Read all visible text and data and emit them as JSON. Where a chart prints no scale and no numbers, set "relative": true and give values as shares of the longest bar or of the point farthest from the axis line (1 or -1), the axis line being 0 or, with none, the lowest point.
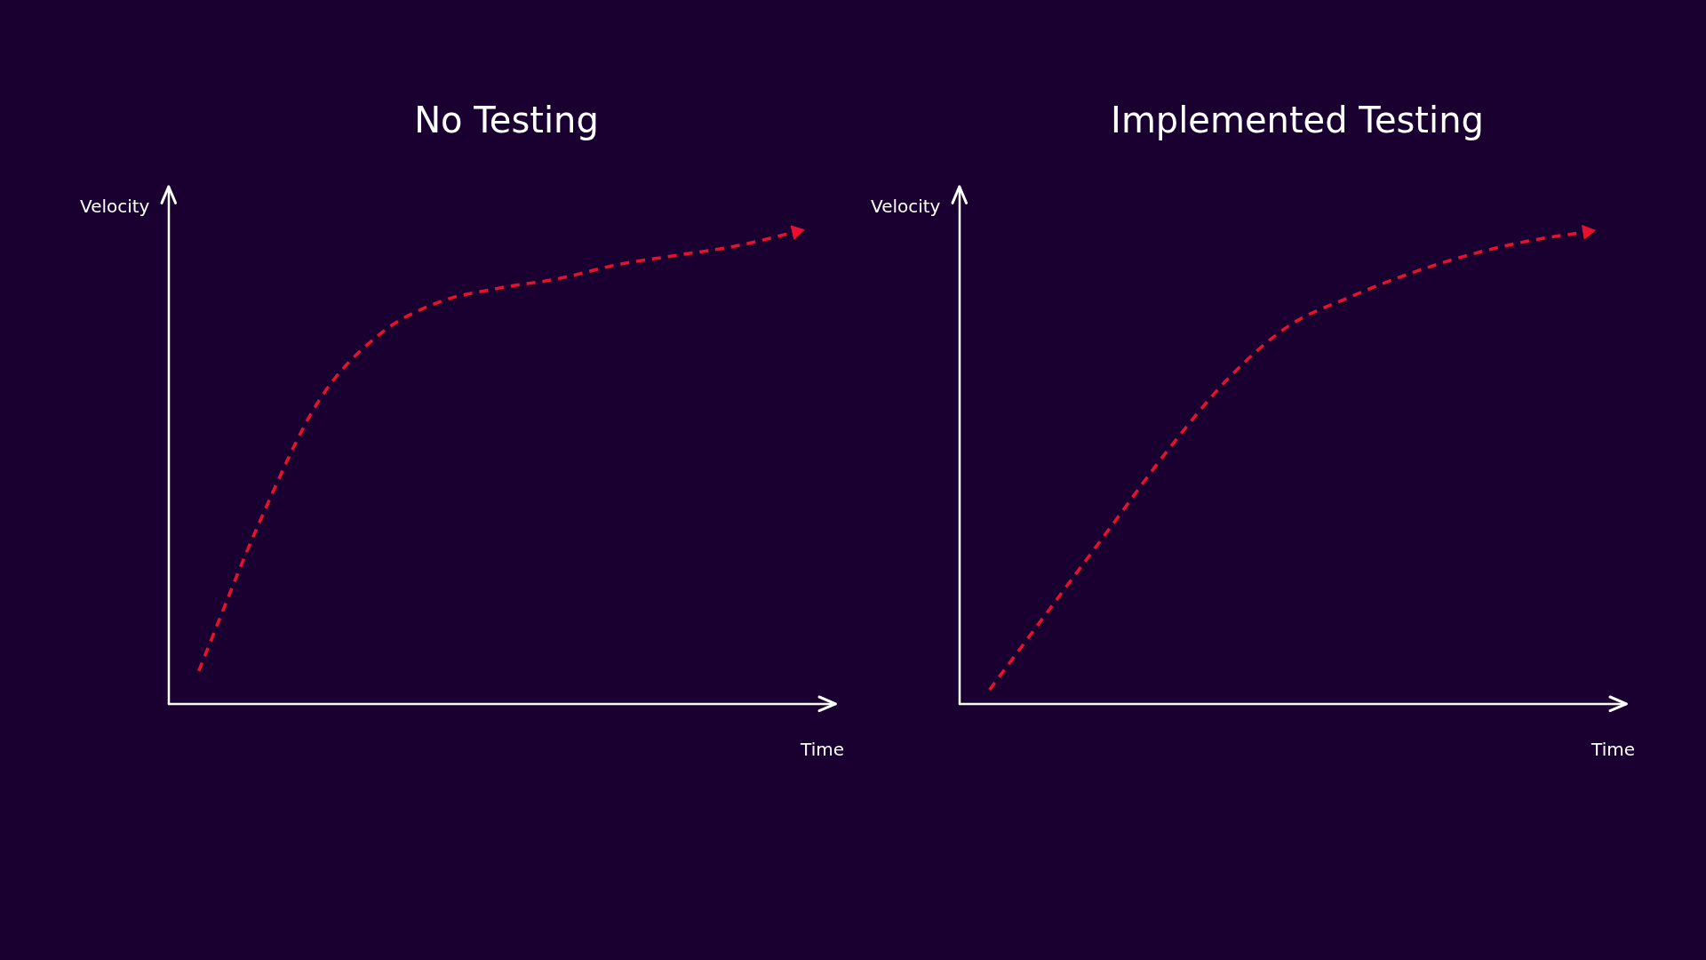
{
  "chart_data": [
    {
      "type": "line",
      "title": "No Testing",
      "xlabel": "Time",
      "ylabel": "Velocity",
      "relative": true,
      "line_style": "dashed",
      "categories": [
        null,
        null,
        null,
        null,
        null,
        null,
        null,
        null,
        null,
        null,
        null
      ],
      "series": [
        {
          "color": "#e8112d",
          "values": [
            0.07,
            0.38,
            0.64,
            0.78,
            0.85,
            0.88,
            0.9,
            0.93,
            0.95,
            0.97,
            1
          ]
        }
      ]
    },
    {
      "type": "line",
      "title": "Implemented Testing",
      "xlabel": "Time",
      "ylabel": "Velocity",
      "relative": true,
      "line_style": "dashed",
      "categories": [
        null,
        null,
        null,
        null,
        null,
        null,
        null,
        null,
        null,
        null,
        null
      ],
      "series": [
        {
          "color": "#e8112d",
          "values": [
            0.03,
            0.2,
            0.37,
            0.54,
            0.69,
            0.8,
            0.86,
            0.91,
            0.95,
            0.98,
            1
          ]
        }
      ]
    }
  ]
}
